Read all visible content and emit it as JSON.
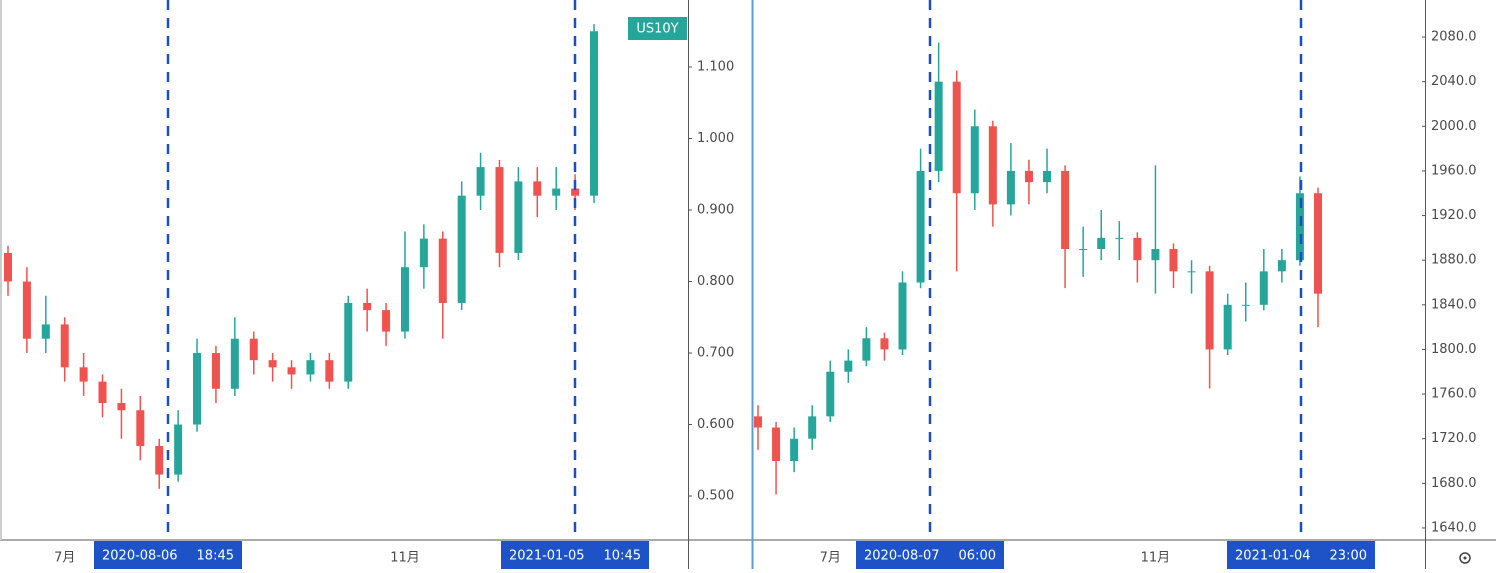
{
  "chart_data": [
    {
      "type": "candlestick",
      "symbol": "US10Y",
      "up_color": "#26a69a",
      "down_color": "#ef5350",
      "categories": [
        null,
        null,
        null,
        "7月",
        null,
        null,
        null,
        null,
        null,
        null,
        null,
        null,
        null,
        null,
        null,
        null,
        null,
        null,
        null,
        null,
        null,
        "11月",
        null,
        null,
        null,
        null,
        null,
        null,
        null,
        null,
        null,
        null
      ],
      "open": [
        0.84,
        0.8,
        0.72,
        0.74,
        0.68,
        0.66,
        0.63,
        0.62,
        0.57,
        0.53,
        0.6,
        0.7,
        0.65,
        0.72,
        0.69,
        0.68,
        0.67,
        0.69,
        0.66,
        0.77,
        0.76,
        0.73,
        0.82,
        0.86,
        0.77,
        0.92,
        0.96,
        0.84,
        0.94,
        0.92,
        0.93,
        0.92
      ],
      "high": [
        0.85,
        0.82,
        0.78,
        0.75,
        0.7,
        0.67,
        0.65,
        0.64,
        0.58,
        0.62,
        0.72,
        0.71,
        0.75,
        0.73,
        0.7,
        0.69,
        0.7,
        0.7,
        0.78,
        0.79,
        0.77,
        0.87,
        0.88,
        0.87,
        0.94,
        0.98,
        0.97,
        0.96,
        0.96,
        0.96,
        0.95,
        1.16
      ],
      "low": [
        0.78,
        0.7,
        0.7,
        0.66,
        0.64,
        0.61,
        0.58,
        0.55,
        0.51,
        0.52,
        0.59,
        0.63,
        0.64,
        0.67,
        0.66,
        0.65,
        0.66,
        0.65,
        0.65,
        0.73,
        0.71,
        0.72,
        0.79,
        0.72,
        0.76,
        0.9,
        0.82,
        0.83,
        0.89,
        0.9,
        0.9,
        0.91
      ],
      "close": [
        0.8,
        0.72,
        0.74,
        0.68,
        0.66,
        0.63,
        0.62,
        0.57,
        0.53,
        0.6,
        0.7,
        0.65,
        0.72,
        0.69,
        0.68,
        0.67,
        0.69,
        0.66,
        0.77,
        0.76,
        0.73,
        0.82,
        0.86,
        0.77,
        0.92,
        0.96,
        0.84,
        0.94,
        0.92,
        0.93,
        0.92,
        1.15
      ],
      "ylim": [
        0.4385,
        1.1937
      ],
      "yticks": [
        {
          "value": 0.5,
          "label": "0.500"
        },
        {
          "value": 0.6,
          "label": "0.600"
        },
        {
          "value": 0.7,
          "label": "0.700"
        },
        {
          "value": 0.8,
          "label": "0.800"
        },
        {
          "value": 0.9,
          "label": "0.900"
        },
        {
          "value": 1.0,
          "label": "1.000"
        },
        {
          "value": 1.1,
          "label": "1.100"
        }
      ],
      "markers": [
        {
          "date": "2020-08-06",
          "time": "18:45"
        },
        {
          "date": "2021-01-05",
          "time": "10:45"
        }
      ]
    },
    {
      "type": "candlestick",
      "up_color": "#26a69a",
      "down_color": "#ef5350",
      "categories": [
        null,
        null,
        null,
        null,
        "7月",
        null,
        null,
        null,
        null,
        null,
        null,
        null,
        null,
        null,
        null,
        null,
        null,
        null,
        null,
        null,
        null,
        null,
        "11月",
        null,
        null,
        null,
        null,
        null,
        null,
        null,
        null,
        null
      ],
      "open": [
        1740,
        1730,
        1700,
        1720,
        1740,
        1780,
        1790,
        1810,
        1800,
        1860,
        1960,
        2040,
        1940,
        2000,
        1930,
        1960,
        1950,
        1960,
        1890,
        1890,
        1900,
        1900,
        1880,
        1890,
        1870,
        1870,
        1800,
        1840,
        1840,
        1870,
        1880,
        1940
      ],
      "high": [
        1750,
        1735,
        1730,
        1750,
        1790,
        1800,
        1820,
        1815,
        1870,
        1980,
        2075,
        2050,
        2015,
        2005,
        1985,
        1970,
        1980,
        1965,
        1910,
        1925,
        1915,
        1905,
        1965,
        1895,
        1880,
        1875,
        1850,
        1860,
        1890,
        1890,
        1955,
        1945
      ],
      "low": [
        1710,
        1670,
        1690,
        1710,
        1735,
        1770,
        1785,
        1790,
        1795,
        1855,
        1950,
        1870,
        1925,
        1910,
        1920,
        1930,
        1940,
        1855,
        1865,
        1880,
        1880,
        1860,
        1850,
        1855,
        1850,
        1765,
        1795,
        1825,
        1835,
        1860,
        1875,
        1820
      ],
      "close": [
        1730,
        1700,
        1720,
        1740,
        1780,
        1790,
        1810,
        1800,
        1860,
        1960,
        2040,
        1940,
        2000,
        1930,
        1960,
        1950,
        1960,
        1890,
        1890,
        1900,
        1900,
        1880,
        1890,
        1870,
        1870,
        1800,
        1840,
        1840,
        1870,
        1880,
        1940,
        1850
      ],
      "ylim": [
        1629.2,
        2113.2
      ],
      "yticks": [
        {
          "value": 1640,
          "label": "1640.0"
        },
        {
          "value": 1680,
          "label": "1680.0"
        },
        {
          "value": 1720,
          "label": "1720.0"
        },
        {
          "value": 1760,
          "label": "1760.0"
        },
        {
          "value": 1800,
          "label": "1800.0"
        },
        {
          "value": 1840,
          "label": "1840.0"
        },
        {
          "value": 1880,
          "label": "1880.0"
        },
        {
          "value": 1920,
          "label": "1920.0"
        },
        {
          "value": 1960,
          "label": "1960.0"
        },
        {
          "value": 2000,
          "label": "2000.0"
        },
        {
          "value": 2040,
          "label": "2040.0"
        },
        {
          "value": 2080,
          "label": "2080.0"
        }
      ],
      "markers": [
        {
          "date": "2020-08-07",
          "time": "06:00"
        },
        {
          "date": "2021-01-04",
          "time": "23:00"
        }
      ]
    }
  ]
}
